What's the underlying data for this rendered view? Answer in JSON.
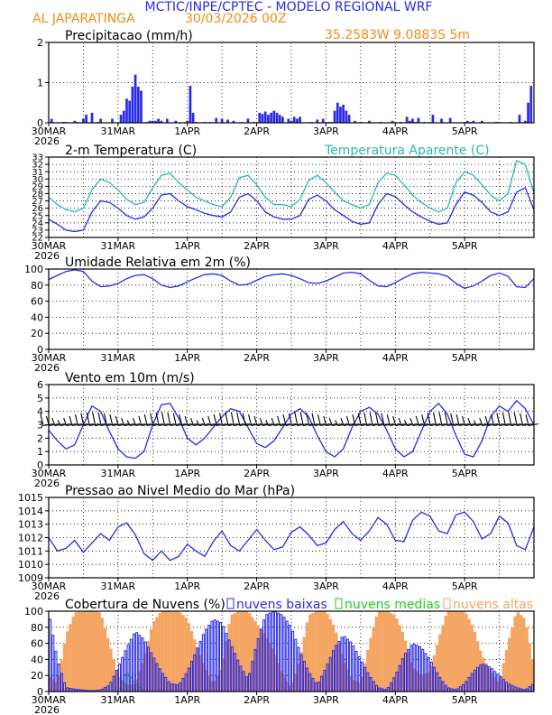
{
  "header": {
    "title": "MCTIC/INPE/CPTEC - MODELO REGIONAL WRF",
    "location": "AL JAPARATINGA",
    "run": "30/03/2026 00Z",
    "coords": "35.2583W 9.0883S 5m"
  },
  "time_axis": {
    "labels": [
      "30MAR",
      "31MAR",
      "1APR",
      "2APR",
      "3APR",
      "4APR",
      "5APR"
    ],
    "year": "2026",
    "range_hours": [
      0,
      168
    ]
  },
  "colors": {
    "blue": "#2a2ae8",
    "cyan": "#2ab8b0",
    "green": "#22cc22",
    "orange": "#f4a460",
    "orange_text": "#f08c1a",
    "black": "#000000"
  },
  "chart_data": [
    {
      "type": "bar",
      "title": "Precipitacao (mm/h)",
      "ylim": [
        0,
        2
      ],
      "yticks": [
        "0",
        "1",
        "2"
      ],
      "x_hours": [
        1,
        5,
        6,
        9,
        10,
        12,
        13,
        15,
        17,
        18,
        22,
        25,
        26,
        27,
        28,
        29,
        30,
        31,
        32,
        34,
        35,
        36,
        37,
        38,
        39,
        41,
        44,
        48,
        49,
        50,
        51,
        54,
        56,
        58,
        60,
        62,
        64,
        67,
        69,
        71,
        73,
        74,
        75,
        76,
        77,
        78,
        79,
        80,
        81,
        83,
        84,
        85,
        86,
        87,
        91,
        93,
        95,
        97,
        98,
        99,
        100,
        101,
        102,
        103,
        104,
        106,
        108,
        111,
        115,
        119,
        122,
        124,
        125,
        126,
        127,
        128,
        130,
        133,
        136,
        139,
        144,
        145,
        146,
        147,
        150,
        155,
        160,
        163,
        165,
        166,
        167
      ],
      "values": [
        0.1,
        0.02,
        0.02,
        0.05,
        0.02,
        0.1,
        0.2,
        0.25,
        0.02,
        0.1,
        0.1,
        0.2,
        0.3,
        0.6,
        0.55,
        0.9,
        1.2,
        0.9,
        0.8,
        0.02,
        0.05,
        0.05,
        0.05,
        0.1,
        0.05,
        0.1,
        0.05,
        0.05,
        0.92,
        0.25,
        0.02,
        0.02,
        0.02,
        0.12,
        0.1,
        0.08,
        0.05,
        0.02,
        0.1,
        0.02,
        0.25,
        0.22,
        0.28,
        0.2,
        0.25,
        0.3,
        0.25,
        0.2,
        0.15,
        0.1,
        0.05,
        0.15,
        0.1,
        0.15,
        0.02,
        0.08,
        0.1,
        0.02,
        0.02,
        0.3,
        0.5,
        0.4,
        0.45,
        0.3,
        0.2,
        0.05,
        0.02,
        0.05,
        0.02,
        0.05,
        0.02,
        0.15,
        0.05,
        0.1,
        0.02,
        0.12,
        0.02,
        0.2,
        0.1,
        0.12,
        0.02,
        0.05,
        0.02,
        0.05,
        0.05,
        0.02,
        0.02,
        0.2,
        0.05,
        0.5,
        0.92
      ]
    },
    {
      "type": "line",
      "title": "2-m Temperatura (C)",
      "legend": "Temperatura Aparente (C)",
      "ylim": [
        22,
        33
      ],
      "yticks": [
        "22",
        "23",
        "24",
        "25",
        "26",
        "27",
        "28",
        "29",
        "30",
        "31",
        "32",
        "33"
      ],
      "x_hours": [
        0,
        3,
        6,
        9,
        12,
        15,
        18,
        21,
        24,
        27,
        30,
        33,
        36,
        39,
        42,
        45,
        48,
        51,
        54,
        57,
        60,
        63,
        66,
        69,
        72,
        75,
        78,
        81,
        84,
        87,
        90,
        93,
        96,
        99,
        102,
        105,
        108,
        111,
        114,
        117,
        120,
        123,
        126,
        129,
        132,
        135,
        138,
        141,
        144,
        147,
        150,
        153,
        156,
        159,
        162,
        165,
        168
      ],
      "series": [
        {
          "name": "2-m Temperatura (C)",
          "color": "blue",
          "values": [
            24.5,
            23.8,
            23.0,
            22.8,
            23.0,
            25.5,
            27.0,
            26.8,
            26.0,
            25.0,
            24.5,
            24.8,
            26.0,
            27.8,
            28.0,
            27.0,
            26.2,
            25.8,
            25.3,
            25.0,
            24.8,
            25.5,
            27.5,
            28.0,
            27.0,
            25.5,
            24.8,
            24.5,
            24.5,
            25.0,
            27.2,
            27.8,
            27.0,
            25.8,
            25.0,
            24.2,
            23.8,
            24.0,
            26.5,
            28.0,
            27.6,
            26.5,
            25.5,
            24.8,
            24.2,
            23.8,
            24.0,
            26.5,
            28.2,
            27.8,
            26.8,
            25.5,
            25.0,
            25.5,
            28.2,
            28.8,
            25.8
          ]
        },
        {
          "name": "Temperatura Aparente (C)",
          "color": "cyan",
          "values": [
            27.5,
            26.5,
            25.8,
            25.5,
            26.0,
            28.5,
            30.0,
            29.5,
            28.5,
            27.2,
            26.5,
            26.8,
            28.8,
            30.5,
            30.8,
            29.5,
            28.5,
            27.5,
            27.0,
            26.5,
            26.2,
            27.5,
            30.2,
            30.5,
            29.2,
            27.5,
            26.5,
            26.5,
            26.2,
            27.2,
            29.8,
            30.5,
            29.5,
            28.2,
            27.0,
            26.5,
            26.0,
            26.5,
            29.5,
            30.8,
            30.5,
            29.2,
            27.8,
            26.8,
            26.0,
            25.5,
            26.0,
            29.5,
            31.0,
            30.5,
            29.2,
            27.8,
            27.0,
            28.0,
            32.5,
            32.0,
            28.0
          ]
        }
      ]
    },
    {
      "type": "line",
      "title": "Umidade Relativa em 2m (%)",
      "ylim": [
        0,
        100
      ],
      "yticks": [
        "0",
        "20",
        "40",
        "60",
        "80",
        "100"
      ],
      "x_hours": [
        0,
        3,
        6,
        9,
        12,
        15,
        18,
        21,
        24,
        27,
        30,
        33,
        36,
        39,
        42,
        45,
        48,
        51,
        54,
        57,
        60,
        63,
        66,
        69,
        72,
        75,
        78,
        81,
        84,
        87,
        90,
        93,
        96,
        99,
        102,
        105,
        108,
        111,
        114,
        117,
        120,
        123,
        126,
        129,
        132,
        135,
        138,
        141,
        144,
        147,
        150,
        153,
        156,
        159,
        162,
        165,
        168
      ],
      "series": [
        {
          "name": "Umidade Relativa em 2m (%)",
          "color": "blue",
          "values": [
            87,
            92,
            97,
            99,
            97,
            85,
            78,
            79,
            82,
            88,
            92,
            93,
            88,
            80,
            77,
            79,
            84,
            89,
            93,
            94,
            92,
            85,
            80,
            81,
            86,
            91,
            93,
            94,
            92,
            88,
            83,
            82,
            85,
            90,
            95,
            96,
            94,
            86,
            79,
            78,
            83,
            89,
            94,
            96,
            95,
            94,
            91,
            82,
            76,
            79,
            85,
            92,
            95,
            91,
            78,
            77,
            88
          ]
        }
      ]
    },
    {
      "type": "line",
      "title": "Vento em 10m (m/s)",
      "ylim": [
        0,
        6
      ],
      "yticks": [
        "0",
        "1",
        "2",
        "3",
        "4",
        "5",
        "6"
      ],
      "x_hours": [
        0,
        3,
        6,
        9,
        12,
        15,
        18,
        21,
        24,
        27,
        30,
        33,
        36,
        39,
        42,
        45,
        48,
        51,
        54,
        57,
        60,
        63,
        66,
        69,
        72,
        75,
        78,
        81,
        84,
        87,
        90,
        93,
        96,
        99,
        102,
        105,
        108,
        111,
        114,
        117,
        120,
        123,
        126,
        129,
        132,
        135,
        138,
        141,
        144,
        147,
        150,
        153,
        156,
        159,
        162,
        165,
        168
      ],
      "series": [
        {
          "name": "Vento em 10m (m/s)",
          "color": "blue",
          "values": [
            2.6,
            1.8,
            1.2,
            1.5,
            3.0,
            4.4,
            4.0,
            2.5,
            1.2,
            0.6,
            0.5,
            1.0,
            3.0,
            4.5,
            4.6,
            3.5,
            2.0,
            1.5,
            2.0,
            2.8,
            3.6,
            4.2,
            4.0,
            2.8,
            1.6,
            1.3,
            1.8,
            2.8,
            3.8,
            4.2,
            3.6,
            2.2,
            1.0,
            0.6,
            1.2,
            2.8,
            4.0,
            4.3,
            3.8,
            2.6,
            1.2,
            0.6,
            1.0,
            2.5,
            4.0,
            4.6,
            3.8,
            2.2,
            0.8,
            0.6,
            1.8,
            3.6,
            4.4,
            4.0,
            4.8,
            4.2,
            3.0
          ]
        }
      ]
    },
    {
      "type": "line",
      "title": "Pressao ao Nivel Medio do Mar (hPa)",
      "ylim": [
        1009,
        1015
      ],
      "yticks": [
        "1009",
        "1010",
        "1011",
        "1012",
        "1013",
        "1014",
        "1015"
      ],
      "x_hours": [
        0,
        3,
        6,
        9,
        12,
        15,
        18,
        21,
        24,
        27,
        30,
        33,
        36,
        39,
        42,
        45,
        48,
        51,
        54,
        57,
        60,
        63,
        66,
        69,
        72,
        75,
        78,
        81,
        84,
        87,
        90,
        93,
        96,
        99,
        102,
        105,
        108,
        111,
        114,
        117,
        120,
        123,
        126,
        129,
        132,
        135,
        138,
        141,
        144,
        147,
        150,
        153,
        156,
        159,
        162,
        165,
        168
      ],
      "series": [
        {
          "name": "Pressao ao Nivel Medio do Mar (hPa)",
          "color": "blue",
          "values": [
            1012.0,
            1011.0,
            1011.2,
            1011.8,
            1010.9,
            1011.6,
            1012.3,
            1011.8,
            1012.8,
            1013.1,
            1012.2,
            1010.8,
            1010.3,
            1011.0,
            1010.3,
            1010.6,
            1011.5,
            1011.0,
            1010.6,
            1011.7,
            1012.5,
            1011.4,
            1011.0,
            1011.8,
            1012.6,
            1011.8,
            1011.1,
            1011.3,
            1012.4,
            1012.8,
            1012.2,
            1011.4,
            1011.6,
            1012.6,
            1013.2,
            1012.3,
            1011.8,
            1012.5,
            1013.5,
            1013.0,
            1011.8,
            1011.7,
            1013.3,
            1013.9,
            1013.6,
            1012.5,
            1012.3,
            1013.7,
            1013.9,
            1013.2,
            1011.9,
            1012.3,
            1013.6,
            1013.1,
            1011.4,
            1011.1,
            1012.8
          ]
        }
      ]
    },
    {
      "type": "bar",
      "title": "Cobertura de Nuvens (%)",
      "legend": [
        "nuvens baixas",
        "nuvens medias",
        "nuvens altas"
      ],
      "ylim": [
        0,
        100
      ],
      "yticks": [
        "0",
        "20",
        "40",
        "60",
        "80",
        "100"
      ],
      "x_hours": [
        0,
        3,
        6,
        9,
        12,
        15,
        18,
        21,
        24,
        27,
        30,
        33,
        36,
        39,
        42,
        45,
        48,
        51,
        54,
        57,
        60,
        63,
        66,
        69,
        72,
        75,
        78,
        81,
        84,
        87,
        90,
        93,
        96,
        99,
        102,
        105,
        108,
        111,
        114,
        117,
        120,
        123,
        126,
        129,
        132,
        135,
        138,
        141,
        144,
        147,
        150,
        153,
        156,
        159,
        162,
        165,
        168
      ],
      "series": [
        {
          "name": "nuvens baixas",
          "color": "blue",
          "values": [
            100,
            40,
            5,
            3,
            2,
            1,
            2,
            8,
            30,
            55,
            75,
            65,
            45,
            25,
            10,
            8,
            25,
            50,
            75,
            90,
            85,
            60,
            35,
            15,
            60,
            95,
            100,
            95,
            80,
            50,
            25,
            8,
            30,
            55,
            70,
            60,
            40,
            20,
            5,
            2,
            20,
            45,
            60,
            55,
            40,
            20,
            5,
            2,
            10,
            25,
            35,
            30,
            20,
            10,
            5,
            2,
            10
          ]
        },
        {
          "name": "nuvens medias",
          "color": "green",
          "values": [
            0,
            0,
            0,
            0,
            0,
            0,
            0,
            0,
            0,
            25,
            10,
            0,
            0,
            0,
            0,
            0,
            0,
            0,
            0,
            0,
            0,
            0,
            0,
            0,
            0,
            0,
            0,
            0,
            0,
            0,
            0,
            0,
            0,
            0,
            0,
            0,
            0,
            0,
            0,
            0,
            0,
            0,
            0,
            0,
            0,
            0,
            0,
            0,
            0,
            0,
            0,
            0,
            0,
            0,
            0,
            0,
            0
          ]
        },
        {
          "name": "nuvens altas",
          "color": "orange",
          "values": [
            20,
            10,
            70,
            98,
            100,
            100,
            98,
            60,
            20,
            8,
            10,
            40,
            85,
            100,
            100,
            100,
            90,
            60,
            30,
            10,
            30,
            95,
            100,
            100,
            85,
            70,
            50,
            20,
            5,
            40,
            95,
            100,
            100,
            80,
            40,
            15,
            10,
            60,
            100,
            100,
            95,
            70,
            30,
            20,
            25,
            65,
            100,
            100,
            100,
            80,
            45,
            25,
            10,
            60,
            100,
            90,
            30
          ]
        }
      ]
    }
  ]
}
